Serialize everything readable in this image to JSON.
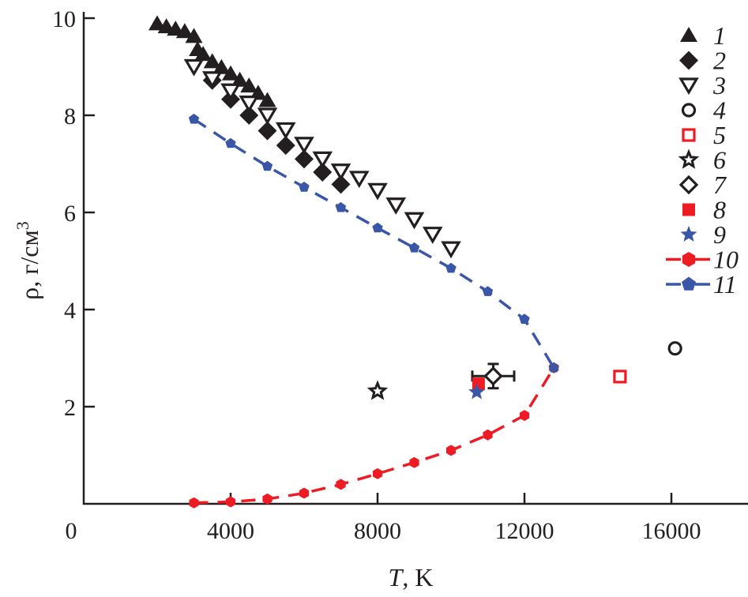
{
  "chart_data": {
    "type": "scatter",
    "title": "",
    "xlabel_var": "T",
    "xlabel_unit": ", K",
    "ylabel": "ρ, г/см",
    "ylabel_sup": "3",
    "xlim": [
      0,
      18000
    ],
    "ylim": [
      0,
      10
    ],
    "xticks": [
      0,
      4000,
      8000,
      12000,
      16000
    ],
    "xtick_labels": [
      "0",
      "4000",
      "8000",
      "12000",
      "16000"
    ],
    "yticks": [
      2,
      4,
      6,
      8,
      10
    ],
    "ytick_labels": [
      "2",
      "4",
      "6",
      "8",
      "10"
    ],
    "grid": false,
    "legend_position": "right",
    "colors": {
      "black": "#231f20",
      "red": "#ed1c24",
      "blue": "#3a56a6"
    },
    "series": [
      {
        "name": "1",
        "marker": "triangle-up-filled",
        "color": "#231f20",
        "x": [
          2000,
          2250,
          2500,
          2750,
          3000,
          3100,
          3250,
          3500,
          3750,
          4000,
          4250,
          4500,
          4750,
          5000
        ],
        "y": [
          9.88,
          9.82,
          9.77,
          9.72,
          9.62,
          9.35,
          9.25,
          9.1,
          8.98,
          8.85,
          8.72,
          8.6,
          8.45,
          8.3
        ]
      },
      {
        "name": "2",
        "marker": "diamond-filled",
        "color": "#231f20",
        "x": [
          3500,
          4000,
          4500,
          5000,
          5500,
          6000,
          6500,
          7000
        ],
        "y": [
          8.72,
          8.33,
          8.0,
          7.68,
          7.38,
          7.1,
          6.83,
          6.58
        ]
      },
      {
        "name": "3",
        "marker": "triangle-down-open",
        "color": "#231f20",
        "x": [
          3000,
          3500,
          4000,
          4500,
          5000,
          5500,
          6000,
          6500,
          7000,
          7500,
          8000,
          8500,
          9000,
          9500,
          10000
        ],
        "y": [
          9.0,
          8.75,
          8.5,
          8.25,
          8.0,
          7.7,
          7.4,
          7.1,
          6.85,
          6.7,
          6.45,
          6.15,
          5.85,
          5.55,
          5.25
        ]
      },
      {
        "name": "4",
        "marker": "circle-open",
        "color": "#231f20",
        "x": [
          16100
        ],
        "y": [
          3.2
        ]
      },
      {
        "name": "5",
        "marker": "square-open",
        "color": "#ed1c24",
        "x": [
          14600
        ],
        "y": [
          2.62
        ]
      },
      {
        "name": "6",
        "marker": "star-open",
        "color": "#231f20",
        "x": [
          8000
        ],
        "y": [
          2.32
        ]
      },
      {
        "name": "7",
        "marker": "diamond-open",
        "color": "#231f20",
        "x": [
          11150
        ],
        "y": [
          2.63
        ],
        "xerr": 570,
        "yerr": 0.25
      },
      {
        "name": "8",
        "marker": "square-filled",
        "color": "#ed1c24",
        "x": [
          10750
        ],
        "y": [
          2.47
        ]
      },
      {
        "name": "9",
        "marker": "star-filled",
        "color": "#3a56a6",
        "x": [
          10700
        ],
        "y": [
          2.3
        ]
      },
      {
        "name": "10",
        "marker": "hexagon-filled",
        "line": "dashed",
        "color": "#ed1c24",
        "x": [
          3000,
          4000,
          5000,
          6000,
          7000,
          8000,
          9000,
          10000,
          11000,
          12000,
          12800
        ],
        "y": [
          0.02,
          0.04,
          0.1,
          0.22,
          0.4,
          0.62,
          0.85,
          1.1,
          1.42,
          1.82,
          2.8
        ]
      },
      {
        "name": "11",
        "marker": "pentagon-filled",
        "line": "dashed",
        "color": "#3a56a6",
        "x": [
          3000,
          4000,
          5000,
          6000,
          7000,
          8000,
          9000,
          10000,
          11000,
          12000,
          12800
        ],
        "y": [
          7.92,
          7.42,
          6.95,
          6.52,
          6.1,
          5.68,
          5.27,
          4.85,
          4.37,
          3.8,
          2.8
        ]
      }
    ]
  }
}
